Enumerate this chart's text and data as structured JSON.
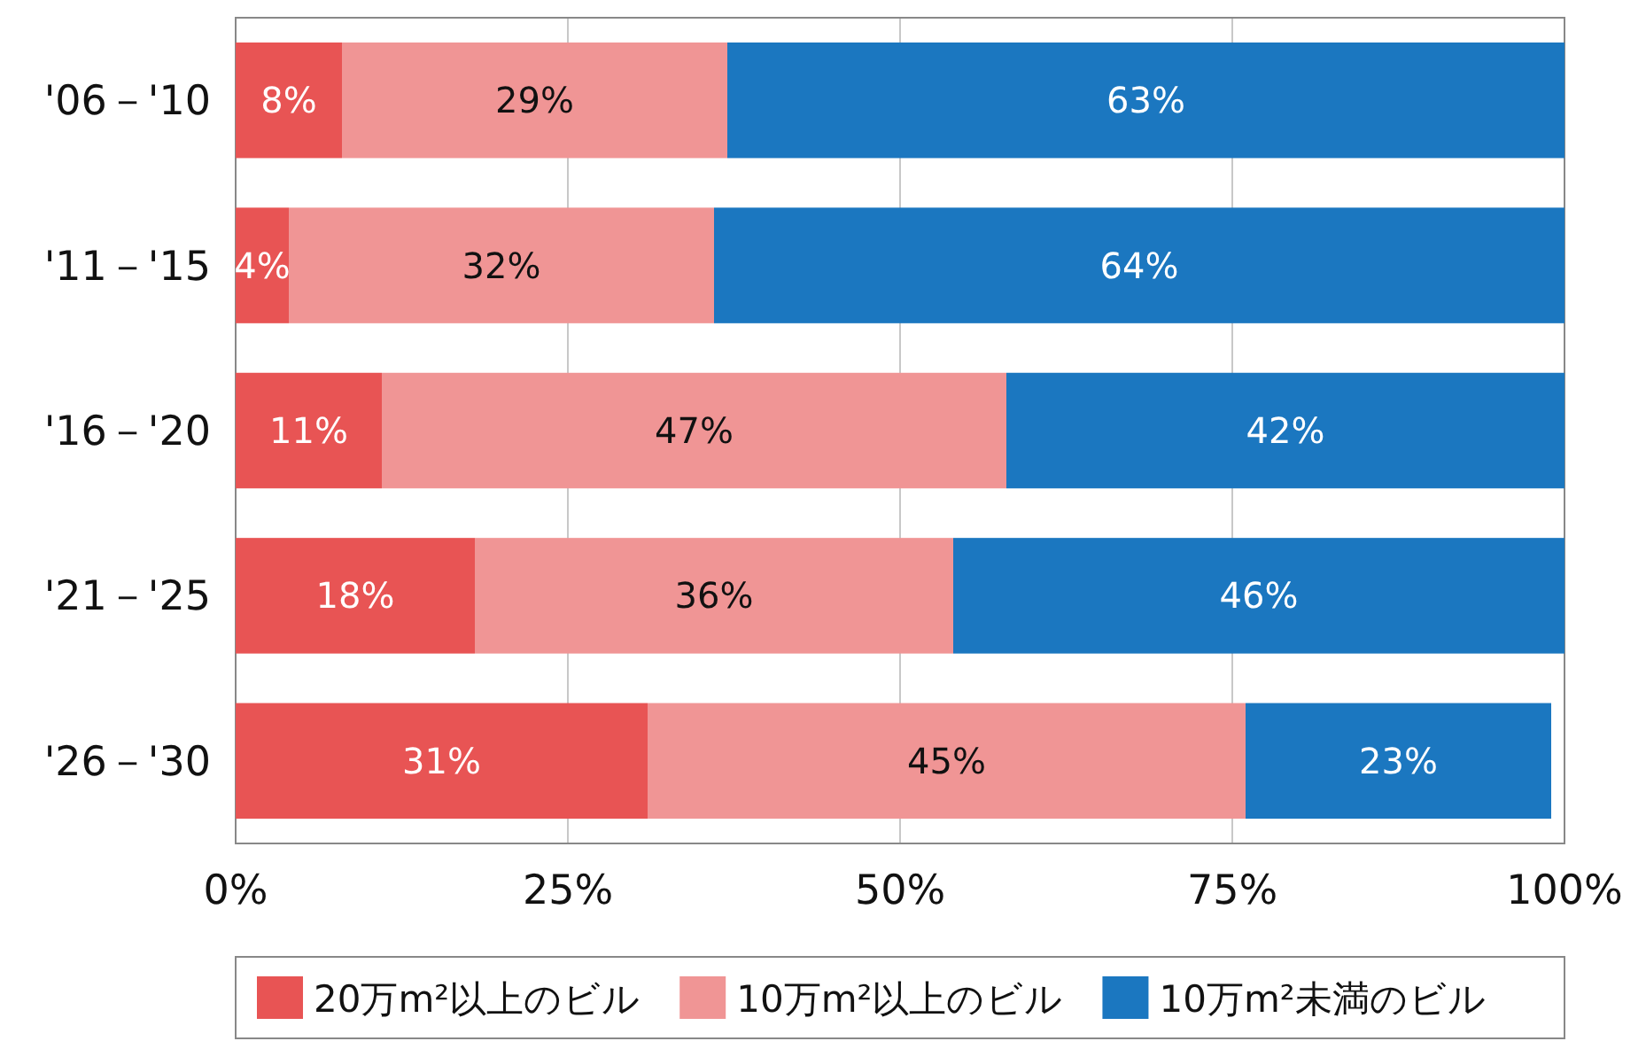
{
  "chart_data": {
    "type": "bar",
    "orientation": "horizontal",
    "stacked": true,
    "categories": [
      "'06－'10",
      "'11－'15",
      "'16－'20",
      "'21－'25",
      "'26－'30"
    ],
    "series": [
      {
        "name": "20万m²以上のビル",
        "color": "#e85454",
        "values": [
          8,
          4,
          11,
          18,
          31
        ],
        "value_labels": [
          "8%",
          "4%",
          "11%",
          "18%",
          "31%"
        ]
      },
      {
        "name": "10万m²以上のビル",
        "color": "#f09595",
        "values": [
          29,
          32,
          47,
          36,
          45
        ],
        "value_labels": [
          "29%",
          "32%",
          "47%",
          "36%",
          "45%"
        ]
      },
      {
        "name": "10万m²未満のビル",
        "color": "#1b77c0",
        "values": [
          63,
          64,
          42,
          46,
          23
        ],
        "value_labels": [
          "63%",
          "64%",
          "42%",
          "46%",
          "23%"
        ]
      }
    ],
    "xlim": [
      0,
      100
    ],
    "xticks": [
      {
        "value": 0,
        "label": "0%"
      },
      {
        "value": 25,
        "label": "25%"
      },
      {
        "value": 50,
        "label": "50%"
      },
      {
        "value": 75,
        "label": "75%"
      },
      {
        "value": 100,
        "label": "100%"
      }
    ],
    "grid": "x",
    "legend": "bottom"
  }
}
